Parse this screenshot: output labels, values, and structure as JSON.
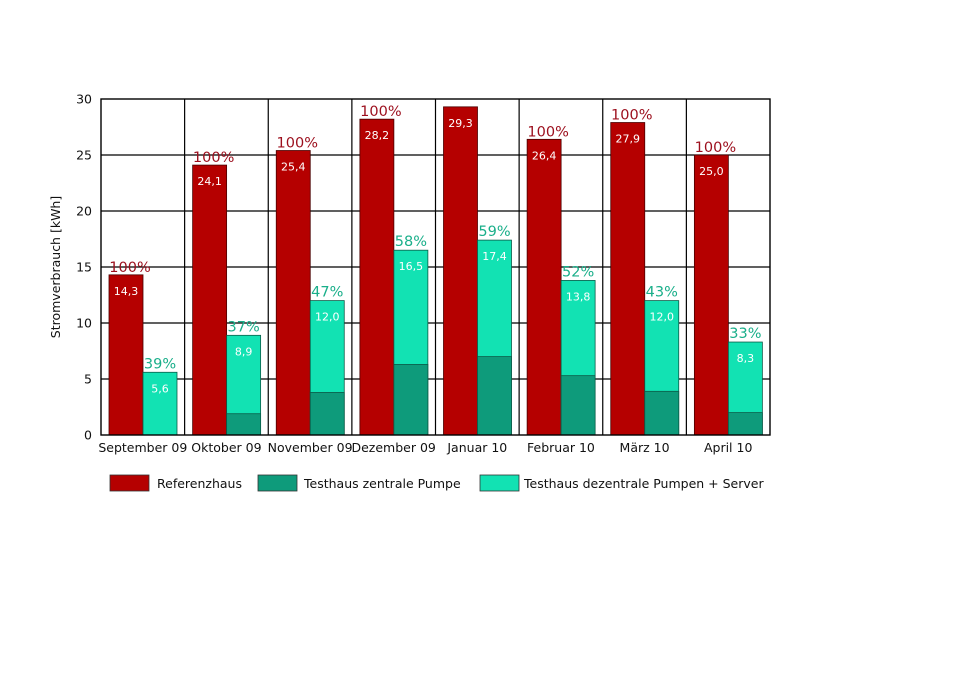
{
  "chart_data": {
    "type": "bar",
    "ylabel": "Stromverbrauch [kWh]",
    "ylim": [
      0,
      30
    ],
    "yticks": [
      0,
      5,
      10,
      15,
      20,
      25,
      30
    ],
    "grid": true,
    "legend_position": "bottom",
    "categories": [
      "September 09",
      "Oktober 09",
      "November 09",
      "Dezember 09",
      "Januar 10",
      "Februar 10",
      "März 10",
      "April 10"
    ],
    "series": [
      {
        "name": "Referenzhaus",
        "color": "#b50000",
        "values": [
          14.3,
          24.1,
          25.4,
          28.2,
          29.3,
          26.4,
          27.9,
          25.0
        ],
        "labels": [
          "14,3",
          "24,1",
          "25,4",
          "28,2",
          "29,3",
          "26,4",
          "27,9",
          "25,0"
        ],
        "percent_labels": [
          "100%",
          "100%",
          "100%",
          "100%",
          "",
          "100%",
          "100%",
          "100%"
        ]
      },
      {
        "name": "Testhaus zentrale Pumpe",
        "color": "#0e9b7b",
        "values": [
          0,
          1.9,
          3.8,
          6.3,
          7.0,
          5.3,
          3.9,
          2.0
        ]
      },
      {
        "name": "Testhaus dezentrale Pumpen + Server",
        "color": "#12e2b3",
        "totals": [
          5.6,
          8.9,
          12.0,
          16.5,
          17.4,
          13.8,
          12.0,
          8.3
        ],
        "labels": [
          "5,6",
          "8,9",
          "12,0",
          "16,5",
          "17,4",
          "13,8",
          "12,0",
          "8,3"
        ],
        "percent_labels": [
          "39%",
          "37%",
          "47%",
          "58%",
          "59%",
          "52%",
          "43%",
          "33%"
        ]
      }
    ],
    "percent_colors": {
      "reference": "#9c0f1d",
      "test": "#1aaf8a"
    }
  }
}
